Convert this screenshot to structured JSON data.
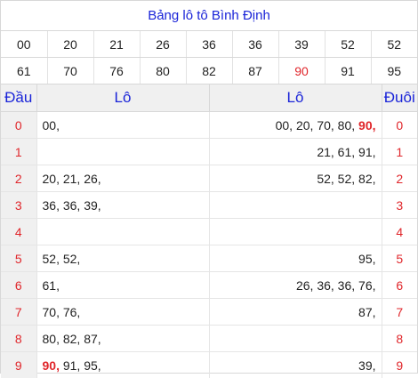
{
  "title": "Bảng lô tô Bình Định",
  "numbers_row1": [
    "00",
    "20",
    "21",
    "26",
    "36",
    "36",
    "39",
    "52",
    "52"
  ],
  "numbers_row2": [
    "61",
    "70",
    "76",
    "80",
    "82",
    "87",
    "90",
    "91",
    "95"
  ],
  "highlight": "90",
  "headers": {
    "dau": "Đầu",
    "lo_left": "Lô",
    "lo_right": "Lô",
    "duoi": "Đuôi"
  },
  "rows": [
    {
      "dau": "0",
      "lo_left": [
        "00,"
      ],
      "lo_right": [
        "00,",
        "20,",
        "70,",
        "80,",
        "90,"
      ],
      "duoi": "0"
    },
    {
      "dau": "1",
      "lo_left": [],
      "lo_right": [
        "21,",
        "61,",
        "91,"
      ],
      "duoi": "1"
    },
    {
      "dau": "2",
      "lo_left": [
        "20,",
        "21,",
        "26,"
      ],
      "lo_right": [
        "52,",
        "52,",
        "82,"
      ],
      "duoi": "2"
    },
    {
      "dau": "3",
      "lo_left": [
        "36,",
        "36,",
        "39,"
      ],
      "lo_right": [],
      "duoi": "3"
    },
    {
      "dau": "4",
      "lo_left": [],
      "lo_right": [],
      "duoi": "4"
    },
    {
      "dau": "5",
      "lo_left": [
        "52,",
        "52,"
      ],
      "lo_right": [
        "95,"
      ],
      "duoi": "5"
    },
    {
      "dau": "6",
      "lo_left": [
        "61,"
      ],
      "lo_right": [
        "26,",
        "36,",
        "36,",
        "76,"
      ],
      "duoi": "6"
    },
    {
      "dau": "7",
      "lo_left": [
        "70,",
        "76,"
      ],
      "lo_right": [
        "87,"
      ],
      "duoi": "7"
    },
    {
      "dau": "8",
      "lo_left": [
        "80,",
        "82,",
        "87,"
      ],
      "lo_right": [],
      "duoi": "8"
    },
    {
      "dau": "9",
      "lo_left": [
        "90,",
        "91,",
        "95,"
      ],
      "lo_right": [
        "39,"
      ],
      "duoi": "9"
    }
  ]
}
